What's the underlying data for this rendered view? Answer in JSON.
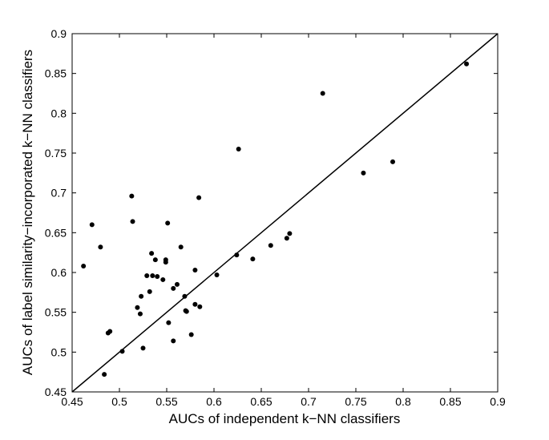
{
  "chart_data": {
    "type": "scatter",
    "title": "",
    "xlabel": "AUCs of independent k−NN classifiers",
    "ylabel": "AUCs of label similarity−incorporated k−NN classifiers",
    "xlim": [
      0.45,
      0.9
    ],
    "ylim": [
      0.45,
      0.9
    ],
    "xticks": [
      "0.45",
      "0.5",
      "0.55",
      "0.6",
      "0.65",
      "0.7",
      "0.75",
      "0.8",
      "0.85",
      "0.9"
    ],
    "yticks": [
      "0.45",
      "0.5",
      "0.55",
      "0.6",
      "0.65",
      "0.7",
      "0.75",
      "0.8",
      "0.85",
      "0.9"
    ],
    "grid": false,
    "reference_line": {
      "from": [
        0.45,
        0.45
      ],
      "to": [
        0.9,
        0.9
      ]
    },
    "series": [
      {
        "marker_color": "#000000",
        "points": [
          [
            0.462,
            0.608
          ],
          [
            0.471,
            0.66
          ],
          [
            0.48,
            0.632
          ],
          [
            0.484,
            0.472
          ],
          [
            0.488,
            0.524
          ],
          [
            0.49,
            0.526
          ],
          [
            0.503,
            0.501
          ],
          [
            0.513,
            0.696
          ],
          [
            0.514,
            0.664
          ],
          [
            0.519,
            0.556
          ],
          [
            0.522,
            0.548
          ],
          [
            0.523,
            0.57
          ],
          [
            0.525,
            0.505
          ],
          [
            0.529,
            0.596
          ],
          [
            0.532,
            0.576
          ],
          [
            0.534,
            0.624
          ],
          [
            0.535,
            0.596
          ],
          [
            0.538,
            0.616
          ],
          [
            0.54,
            0.595
          ],
          [
            0.546,
            0.591
          ],
          [
            0.549,
            0.616
          ],
          [
            0.549,
            0.613
          ],
          [
            0.551,
            0.662
          ],
          [
            0.552,
            0.537
          ],
          [
            0.557,
            0.514
          ],
          [
            0.557,
            0.58
          ],
          [
            0.561,
            0.585
          ],
          [
            0.565,
            0.632
          ],
          [
            0.569,
            0.57
          ],
          [
            0.57,
            0.552
          ],
          [
            0.571,
            0.551
          ],
          [
            0.576,
            0.522
          ],
          [
            0.58,
            0.603
          ],
          [
            0.58,
            0.56
          ],
          [
            0.584,
            0.694
          ],
          [
            0.585,
            0.557
          ],
          [
            0.603,
            0.597
          ],
          [
            0.624,
            0.622
          ],
          [
            0.626,
            0.755
          ],
          [
            0.641,
            0.617
          ],
          [
            0.66,
            0.634
          ],
          [
            0.677,
            0.643
          ],
          [
            0.68,
            0.649
          ],
          [
            0.715,
            0.825
          ],
          [
            0.758,
            0.725
          ],
          [
            0.789,
            0.739
          ],
          [
            0.867,
            0.862
          ]
        ]
      }
    ]
  }
}
